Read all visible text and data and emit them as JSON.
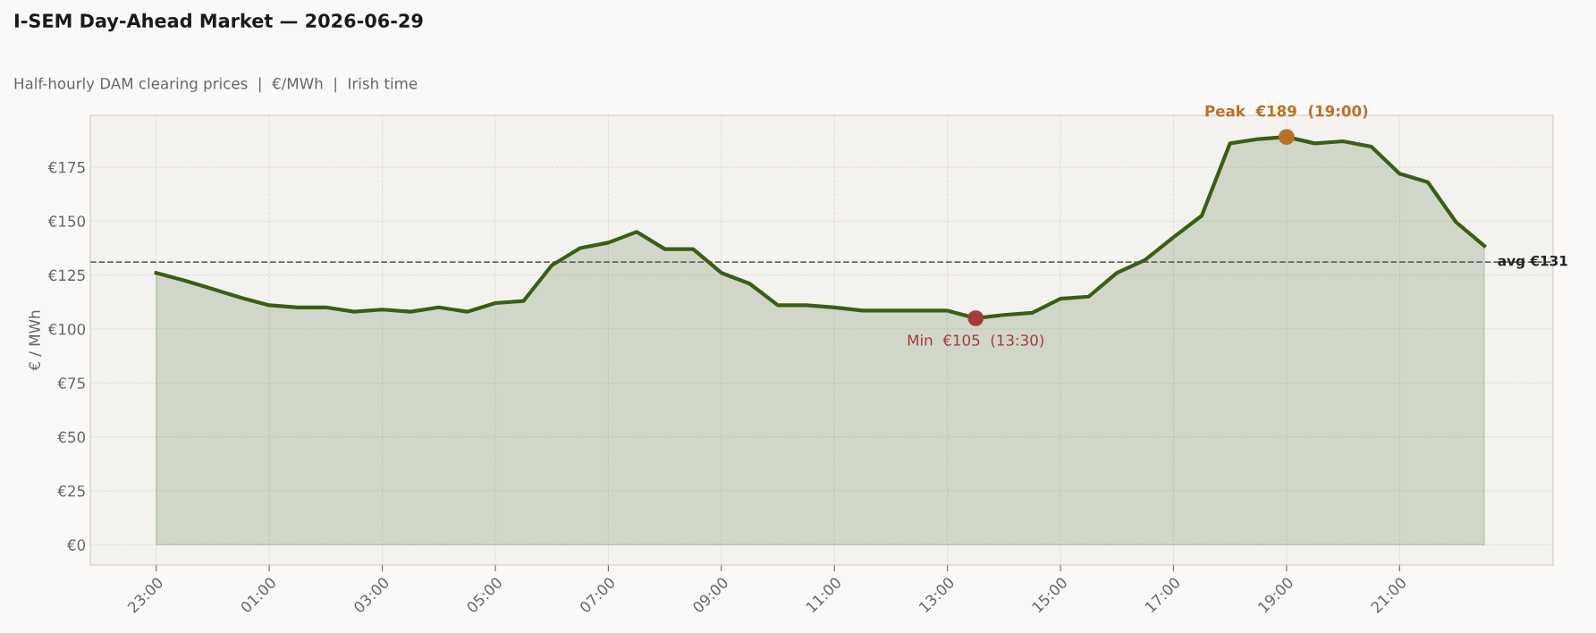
{
  "chart_data": {
    "type": "area",
    "title": "I-SEM Day-Ahead Market — 2026-06-29",
    "subtitle": "Half-hourly DAM clearing prices  |  €/MWh  |  Irish time",
    "ylabel": "€ / MWh",
    "x": [
      "2026-06-28T23:00",
      "2026-06-28T23:30",
      "2026-06-29T00:00",
      "2026-06-29T00:30",
      "2026-06-29T01:00",
      "2026-06-29T01:30",
      "2026-06-29T02:00",
      "2026-06-29T02:30",
      "2026-06-29T03:00",
      "2026-06-29T03:30",
      "2026-06-29T04:00",
      "2026-06-29T04:30",
      "2026-06-29T05:00",
      "2026-06-29T05:30",
      "2026-06-29T06:00",
      "2026-06-29T06:30",
      "2026-06-29T07:00",
      "2026-06-29T07:30",
      "2026-06-29T08:00",
      "2026-06-29T08:30",
      "2026-06-29T09:00",
      "2026-06-29T09:30",
      "2026-06-29T10:00",
      "2026-06-29T10:30",
      "2026-06-29T11:00",
      "2026-06-29T11:30",
      "2026-06-29T12:00",
      "2026-06-29T12:30",
      "2026-06-29T13:00",
      "2026-06-29T13:30",
      "2026-06-29T14:00",
      "2026-06-29T14:30",
      "2026-06-29T15:00",
      "2026-06-29T15:30",
      "2026-06-29T16:00",
      "2026-06-29T16:30",
      "2026-06-29T17:00",
      "2026-06-29T17:30",
      "2026-06-29T18:00",
      "2026-06-29T18:30",
      "2026-06-29T19:00",
      "2026-06-29T19:30",
      "2026-06-29T20:00",
      "2026-06-29T20:30",
      "2026-06-29T21:00",
      "2026-06-29T21:30",
      "2026-06-29T22:00",
      "2026-06-29T22:30"
    ],
    "series": [
      {
        "color": "#3a5f14",
        "values": [
          126,
          122.5,
          118.5,
          114.5,
          111,
          110,
          110,
          108,
          109,
          108,
          110,
          108,
          112,
          113,
          129.5,
          137.5,
          140,
          145,
          137,
          137,
          126,
          121,
          111,
          111,
          110,
          108.5,
          108.5,
          108.5,
          108.5,
          105,
          106.5,
          107.5,
          114,
          115,
          126,
          132,
          142.5,
          152.5,
          186,
          188,
          189,
          186,
          187,
          184.5,
          172,
          168,
          149.5,
          138.5
        ]
      },
      {
        "type": "scatter",
        "marker": "circle",
        "color": "#b87028",
        "x": [
          "2026-06-29T19:00"
        ],
        "values": [
          189
        ]
      },
      {
        "type": "scatter",
        "marker": "circle",
        "color": "#a63a3a",
        "x": [
          "2026-06-29T13:30"
        ],
        "values": [
          105
        ]
      }
    ],
    "annotations": [
      {
        "text": "Peak  €189  (19:00)",
        "x": "2026-06-29T19:00",
        "y": 189
      },
      {
        "text": "Min  €105  (13:30)",
        "x": "2026-06-29T13:30",
        "y": 105
      }
    ],
    "ref_lines": [
      {
        "axis": "y",
        "value": 131,
        "label": "avg €131",
        "color": "#666666",
        "line_style": "dashed"
      }
    ],
    "xlim": [
      "2026-06-28T21:50",
      "2026-06-29T23:43"
    ],
    "ylim": [
      -9.4,
      199
    ],
    "xticks": [
      {
        "value": "2026-06-28T23:00",
        "label": "23:00"
      },
      {
        "value": "2026-06-29T01:00",
        "label": "01:00"
      },
      {
        "value": "2026-06-29T03:00",
        "label": "03:00"
      },
      {
        "value": "2026-06-29T05:00",
        "label": "05:00"
      },
      {
        "value": "2026-06-29T07:00",
        "label": "07:00"
      },
      {
        "value": "2026-06-29T09:00",
        "label": "09:00"
      },
      {
        "value": "2026-06-29T11:00",
        "label": "11:00"
      },
      {
        "value": "2026-06-29T13:00",
        "label": "13:00"
      },
      {
        "value": "2026-06-29T15:00",
        "label": "15:00"
      },
      {
        "value": "2026-06-29T17:00",
        "label": "17:00"
      },
      {
        "value": "2026-06-29T19:00",
        "label": "19:00"
      },
      {
        "value": "2026-06-29T21:00",
        "label": "21:00"
      }
    ],
    "yticks": [
      {
        "value": 0,
        "label": "€0"
      },
      {
        "value": 25,
        "label": "€25"
      },
      {
        "value": 50,
        "label": "€50"
      },
      {
        "value": 75,
        "label": "€75"
      },
      {
        "value": 100,
        "label": "€100"
      },
      {
        "value": 125,
        "label": "€125"
      },
      {
        "value": 150,
        "label": "€150"
      },
      {
        "value": 175,
        "label": "€175"
      }
    ],
    "grid": true,
    "line_style": "solid"
  }
}
